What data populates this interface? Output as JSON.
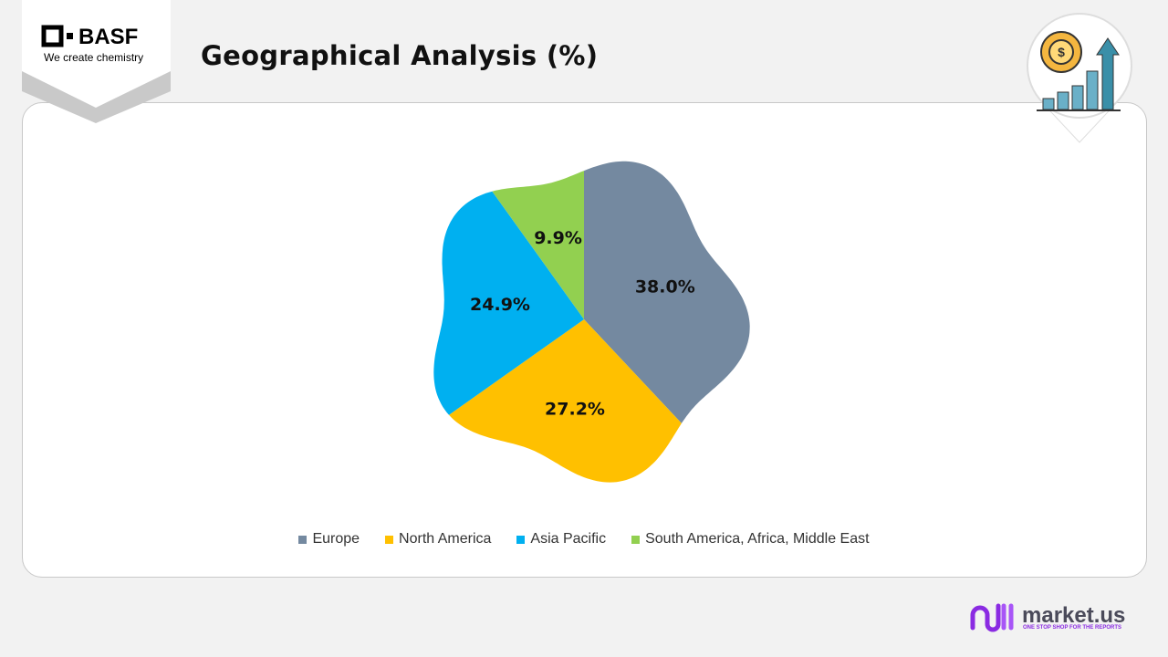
{
  "chart_data": {
    "type": "pie",
    "title": "Geographical Analysis (%)",
    "categories": [
      "Europe",
      "North America",
      "Asia Pacific",
      "South America, Africa, Middle East"
    ],
    "values": [
      38.0,
      27.2,
      24.9,
      9.9
    ],
    "value_labels": [
      "38.0%",
      "27.2%",
      "24.9%",
      "9.9%"
    ],
    "colors": [
      "#7489a0",
      "#ffc000",
      "#00b0f0",
      "#92d050"
    ],
    "legend": "bottom"
  },
  "branding": {
    "company": "BASF",
    "tagline": "We create chemistry",
    "publisher": "market.us",
    "publisher_tagline": "ONE STOP SHOP FOR THE REPORTS"
  }
}
